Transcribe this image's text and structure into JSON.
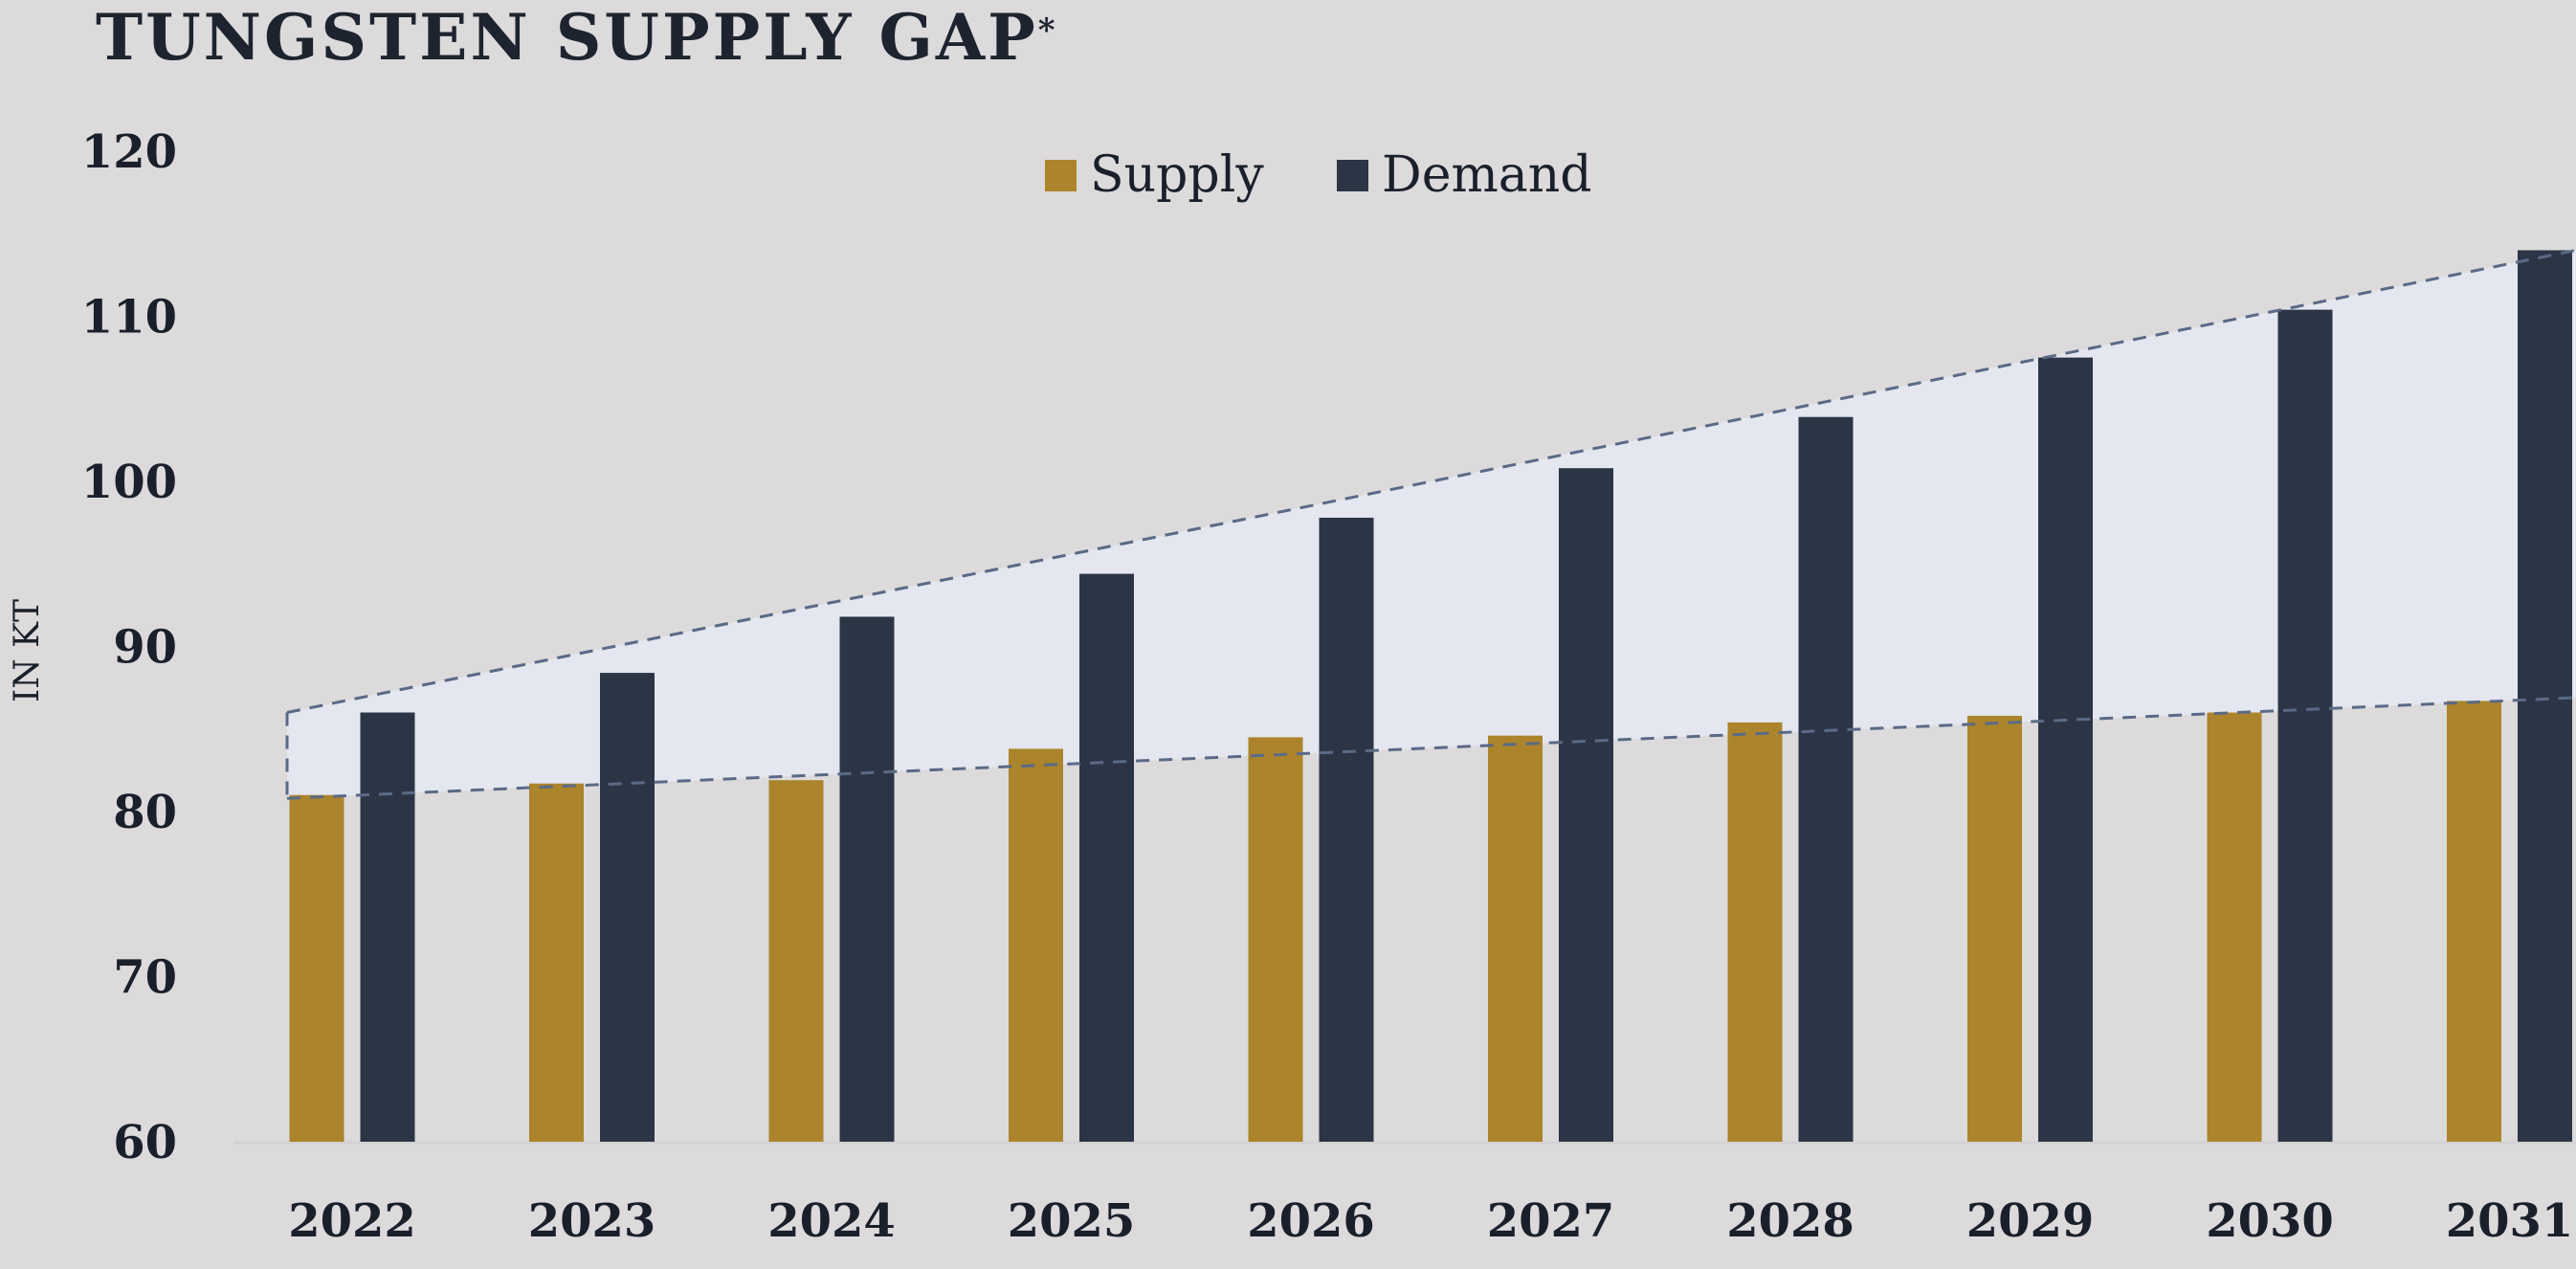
{
  "chart_data": {
    "type": "bar",
    "title": "TUNGSTEN SUPPLY GAP",
    "title_marker": "*",
    "xlabel": "",
    "ylabel": "IN KT",
    "ylim": [
      60,
      120
    ],
    "yticks": [
      60,
      70,
      80,
      90,
      100,
      110,
      120
    ],
    "categories": [
      "2022",
      "2023",
      "2024",
      "2025",
      "2026",
      "2027",
      "2028",
      "2029",
      "2030",
      "2031"
    ],
    "series": [
      {
        "name": "Supply",
        "color": "#ab842b",
        "values": [
          81.0,
          81.7,
          81.9,
          83.8,
          84.5,
          84.6,
          85.4,
          85.8,
          86.0,
          86.7
        ]
      },
      {
        "name": "Demand",
        "color": "#2c3546",
        "values": [
          86.0,
          88.4,
          91.8,
          94.4,
          97.8,
          100.8,
          103.9,
          107.5,
          110.4,
          114.0
        ]
      }
    ],
    "gap_band": {
      "upper_start": 86.0,
      "upper_end": 114.0,
      "lower_start": 80.8,
      "lower_end": 86.9,
      "fill": "#e4e7ef",
      "line_color": "#5a6a86"
    },
    "legend": "top-center",
    "grid": false
  }
}
